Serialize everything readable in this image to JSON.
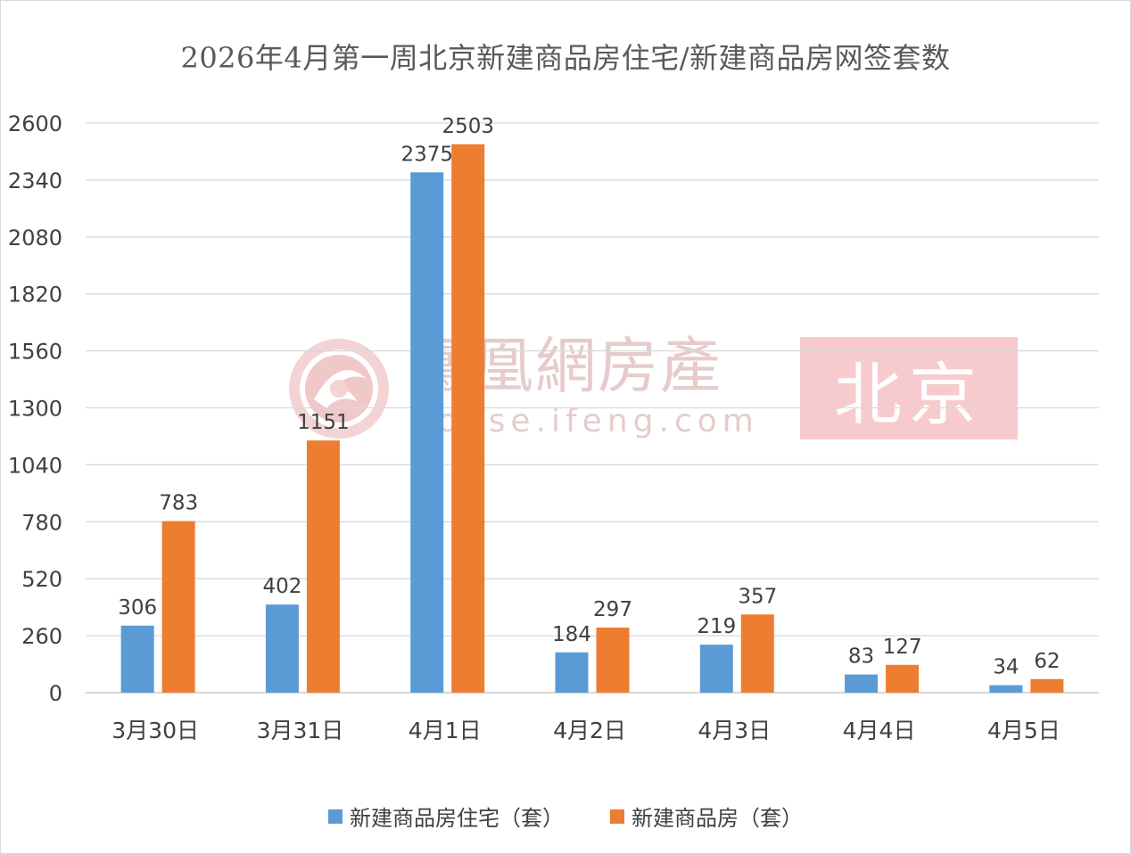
{
  "chart_data": {
    "type": "bar",
    "title": "2026年4月第一周北京新建商品房住宅/新建商品房网签套数",
    "categories": [
      "3月30日",
      "3月31日",
      "4月1日",
      "4月2日",
      "4月3日",
      "4月4日",
      "4月5日"
    ],
    "series": [
      {
        "name": "新建商品房住宅（套）",
        "color": "#5b9bd5",
        "values": [
          306,
          402,
          2375,
          184,
          219,
          83,
          34
        ]
      },
      {
        "name": "新建商品房（套）",
        "color": "#ed7d31",
        "values": [
          783,
          1151,
          2503,
          297,
          357,
          127,
          62
        ]
      }
    ],
    "ylim": [
      0,
      2600
    ],
    "yticks": [
      0,
      260,
      520,
      780,
      1040,
      1300,
      1560,
      1820,
      2080,
      2340,
      2600
    ],
    "grid": true,
    "legend_position": "bottom"
  },
  "watermark": {
    "name": "鳳凰網房產",
    "url": "house.ifeng.com",
    "city": "北京",
    "logo_icon": "phoenix-logo-icon"
  }
}
